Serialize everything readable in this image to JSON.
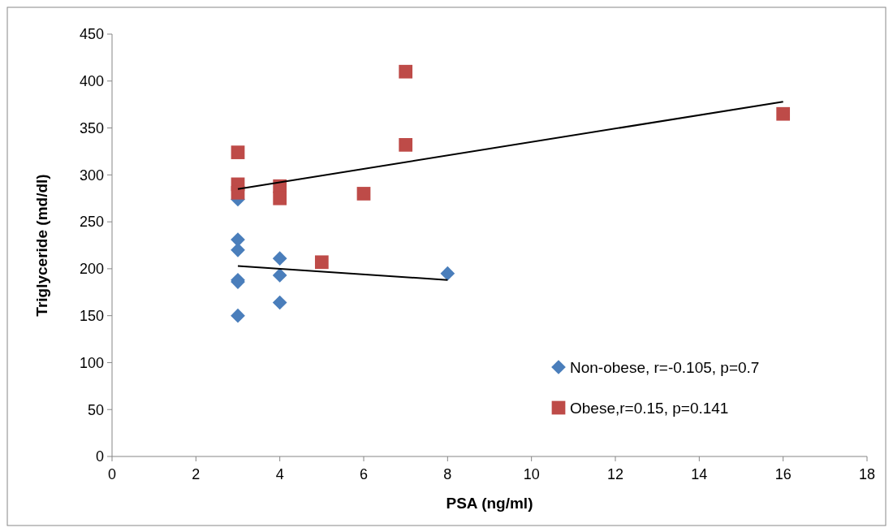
{
  "chart_data": {
    "type": "scatter",
    "xlabel": "PSA (ng/ml)",
    "ylabel": "Triglyceride (md/dl)",
    "xlim": [
      0,
      18
    ],
    "xticks": [
      0,
      2,
      4,
      6,
      8,
      10,
      12,
      14,
      16,
      18
    ],
    "ylim": [
      0,
      450
    ],
    "yticks": [
      0,
      50,
      100,
      150,
      200,
      250,
      300,
      350,
      400,
      450
    ],
    "grid": false,
    "legend": "bottom right",
    "series": [
      {
        "name": "Non-obese, r=-0.105, p=0.7",
        "color": "#4a7ebb",
        "marker": "diamond",
        "x": [
          3,
          3,
          3,
          3,
          3,
          3,
          4,
          4,
          4,
          8
        ],
        "values": [
          274,
          231,
          220,
          188,
          186,
          150,
          211,
          193,
          164,
          195
        ]
      },
      {
        "name": "Obese,r=0.15, p=0.141",
        "color": "#be4b48",
        "marker": "square",
        "x": [
          3,
          3,
          3,
          4,
          4,
          5,
          6,
          7,
          7,
          16
        ],
        "values": [
          324,
          290,
          281,
          288,
          275,
          207,
          280,
          410,
          332,
          365
        ]
      },
      {
        "type": "line",
        "color": "#000000",
        "x": [
          3,
          8
        ],
        "values": [
          203,
          188
        ]
      },
      {
        "type": "line",
        "color": "#000000",
        "x": [
          3,
          16
        ],
        "values": [
          285,
          378
        ]
      }
    ]
  }
}
